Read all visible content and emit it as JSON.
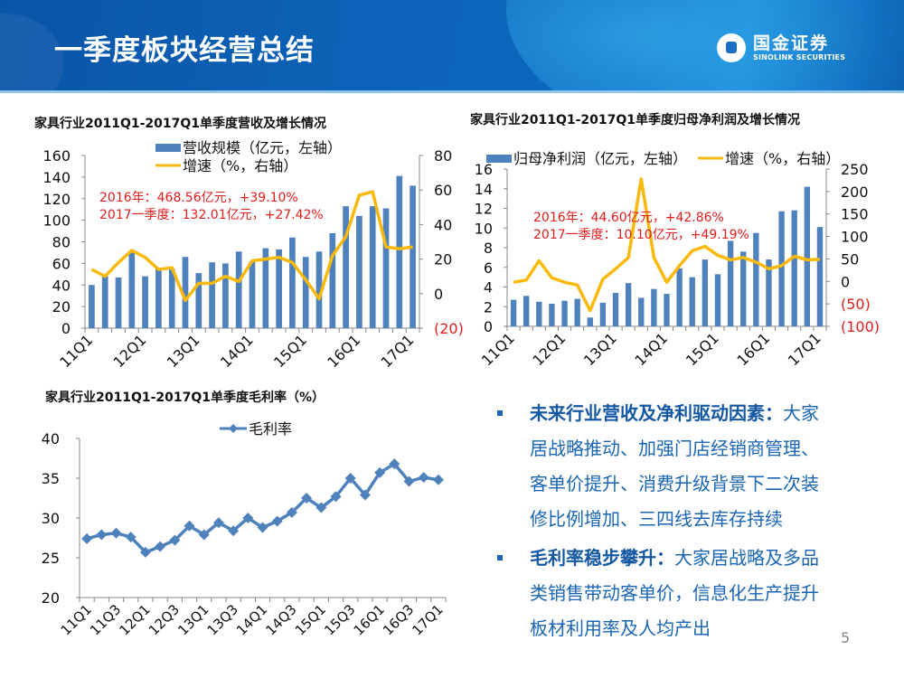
{
  "header": {
    "title": "一季度板块经营总结",
    "logo_cn": "国金证券",
    "logo_en": "SINOLINK SECURITIES"
  },
  "colors": {
    "bar": "#4f81bd",
    "line": "#f9b90a",
    "margin_line": "#4f81bd",
    "annotation": "#e31c1c",
    "axis_negative": "#e31c1c"
  },
  "chart_data": [
    {
      "type": "bar",
      "title": "家具行业2011Q1-2017Q1单季度营收及增长情况",
      "categories": [
        "11Q1",
        "11Q2",
        "11Q3",
        "11Q4",
        "12Q1",
        "12Q2",
        "12Q3",
        "12Q4",
        "13Q1",
        "13Q2",
        "13Q3",
        "13Q4",
        "14Q1",
        "14Q2",
        "14Q3",
        "14Q4",
        "15Q1",
        "15Q2",
        "15Q3",
        "15Q4",
        "16Q1",
        "16Q2",
        "16Q3",
        "16Q4",
        "17Q1"
      ],
      "tick_labels": [
        "11Q1",
        "12Q1",
        "13Q1",
        "14Q1",
        "15Q1",
        "16Q1",
        "17Q1"
      ],
      "series": [
        {
          "name": "营收规模（亿元，左轴）",
          "axis": "left",
          "kind": "bar",
          "values": [
            40,
            48,
            47,
            70,
            48,
            56,
            55,
            66,
            51,
            61,
            60,
            71,
            62,
            74,
            73,
            84,
            66,
            71,
            88,
            113,
            104,
            113,
            111,
            141,
            132
          ]
        },
        {
          "name": "增速（%，右轴）",
          "axis": "right",
          "kind": "line",
          "values": [
            14,
            10,
            18,
            25,
            21,
            14,
            15,
            -4,
            6,
            6,
            10,
            7,
            19,
            20,
            21,
            18,
            8,
            -3,
            22,
            33,
            57,
            59,
            27,
            26,
            27
          ]
        }
      ],
      "left_axis": {
        "ylim": [
          0,
          160
        ],
        "ticks": [
          "0",
          "20",
          "40",
          "60",
          "80",
          "100",
          "120",
          "140",
          "160"
        ]
      },
      "right_axis": {
        "ylim": [
          -20,
          80
        ],
        "ticks": [
          "(20)",
          "0",
          "20",
          "40",
          "60",
          "80"
        ]
      },
      "annotations": [
        "2016年：468.56亿元，+39.10%",
        "2017一季度：132.01亿元，+27.42%"
      ],
      "legend": "top-center"
    },
    {
      "type": "bar",
      "title": "家具行业2011Q1-2017Q1单季度归母净利润及增长情况",
      "categories": [
        "11Q1",
        "11Q2",
        "11Q3",
        "11Q4",
        "12Q1",
        "12Q2",
        "12Q3",
        "12Q4",
        "13Q1",
        "13Q2",
        "13Q3",
        "13Q4",
        "14Q1",
        "14Q2",
        "14Q3",
        "14Q4",
        "15Q1",
        "15Q2",
        "15Q3",
        "15Q4",
        "16Q1",
        "16Q2",
        "16Q3",
        "16Q4",
        "17Q1"
      ],
      "tick_labels": [
        "11Q1",
        "12Q1",
        "13Q1",
        "14Q1",
        "15Q1",
        "16Q1",
        "17Q1"
      ],
      "series": [
        {
          "name": "归母净利润（亿元，左轴）",
          "axis": "left",
          "kind": "bar",
          "values": [
            2.7,
            3.1,
            2.5,
            2.3,
            2.6,
            2.8,
            0.9,
            2.4,
            3.4,
            4.4,
            2.9,
            3.8,
            3.3,
            5.9,
            5.0,
            6.8,
            5.3,
            8.7,
            7.6,
            9.5,
            6.8,
            11.7,
            11.8,
            14.2,
            10.1
          ]
        },
        {
          "name": "增速（%，右轴）",
          "axis": "right",
          "kind": "line",
          "values": [
            -2,
            3,
            46,
            8,
            -2,
            -8,
            -65,
            5,
            28,
            53,
            228,
            53,
            -2,
            35,
            68,
            78,
            58,
            48,
            53,
            43,
            28,
            35,
            56,
            48,
            49
          ]
        }
      ],
      "left_axis": {
        "ylim": [
          0,
          16
        ],
        "ticks": [
          "0",
          "2",
          "4",
          "6",
          "8",
          "10",
          "12",
          "14",
          "16"
        ]
      },
      "right_axis": {
        "ylim": [
          -100,
          250
        ],
        "ticks": [
          "(100)",
          "(50)",
          "0",
          "50",
          "100",
          "150",
          "200",
          "250"
        ]
      },
      "annotations": [
        "2016年：44.60亿元，+42.86%",
        "2017一季度：10.10亿元，+49.19%"
      ],
      "legend": "top-center"
    },
    {
      "type": "line",
      "title": "家具行业2011Q1-2017Q1单季度毛利率（%）",
      "categories": [
        "11Q1",
        "11Q2",
        "11Q3",
        "11Q4",
        "12Q1",
        "12Q2",
        "12Q3",
        "12Q4",
        "13Q1",
        "13Q2",
        "13Q3",
        "13Q4",
        "14Q1",
        "14Q2",
        "14Q3",
        "14Q4",
        "15Q1",
        "15Q2",
        "15Q3",
        "15Q4",
        "16Q1",
        "16Q2",
        "16Q3",
        "16Q4",
        "17Q1"
      ],
      "tick_labels": [
        "11Q1",
        "11Q3",
        "12Q1",
        "12Q3",
        "13Q1",
        "13Q3",
        "14Q1",
        "14Q3",
        "15Q1",
        "15Q3",
        "16Q1",
        "16Q3",
        "17Q1"
      ],
      "series": [
        {
          "name": "毛利率",
          "values": [
            27.4,
            27.9,
            28.1,
            27.6,
            25.7,
            26.4,
            27.2,
            29.0,
            27.9,
            29.4,
            28.4,
            30.0,
            28.8,
            29.6,
            30.7,
            32.5,
            31.3,
            32.7,
            35.0,
            32.9,
            35.7,
            36.8,
            34.6,
            35.1,
            34.8
          ]
        }
      ],
      "ylim": [
        20,
        40
      ],
      "ticks": [
        "20",
        "25",
        "30",
        "35",
        "40"
      ],
      "legend": "top-center"
    }
  ],
  "bullets": [
    {
      "lead": "未来行业营收及净利驱动因素：",
      "lines": [
        "大家",
        "居战略推动、加强门店经销商管理、",
        "客单价提升、消费升级背景下二次装",
        "修比例增加、三四线去库存持续"
      ]
    },
    {
      "lead": "毛利率稳步攀升：",
      "lines": [
        "大家居战略及多品",
        "类销售带动客单价，信息化生产提升",
        "板材利用率及人均产出"
      ]
    }
  ],
  "page_number": "5"
}
